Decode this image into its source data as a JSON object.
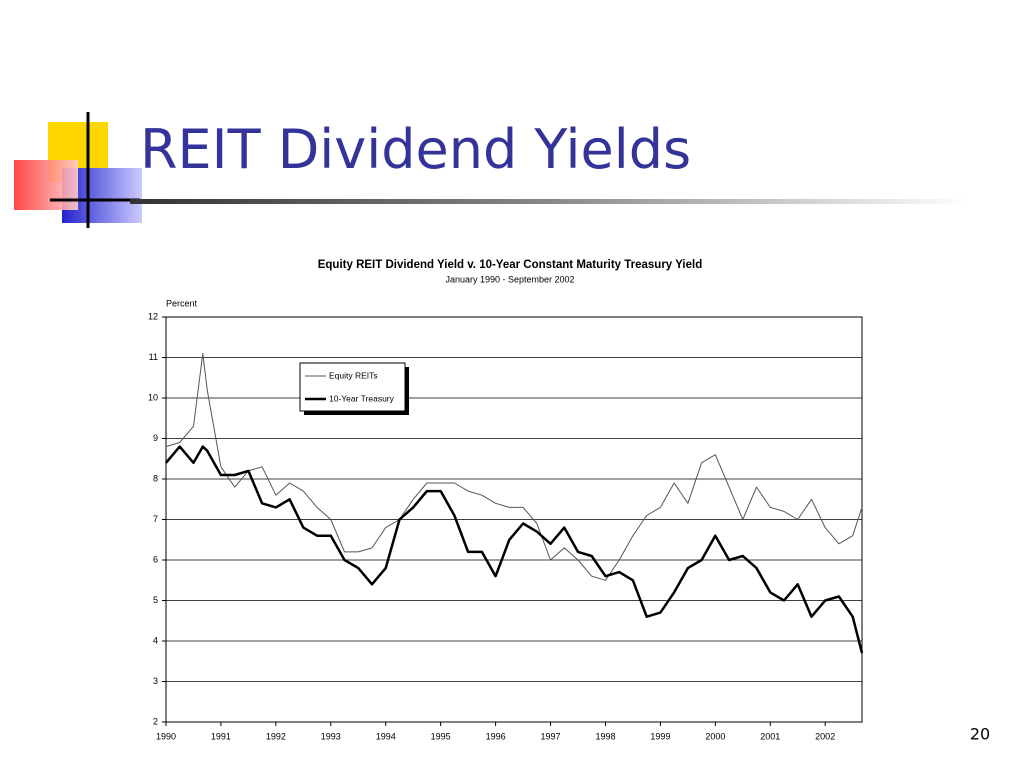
{
  "slide": {
    "title": "REIT Dividend Yields",
    "page_number": "20"
  },
  "chart_data": {
    "type": "line",
    "title": "Equity REIT Dividend Yield v. 10-Year Constant Maturity Treasury Yield",
    "subtitle": "January 1990 - September 2002",
    "y_label": "Percent",
    "x": [
      1990,
      1990.25,
      1990.5,
      1990.67,
      1990.75,
      1991,
      1991.25,
      1991.5,
      1991.75,
      1992,
      1992.25,
      1992.5,
      1992.75,
      1993,
      1993.25,
      1993.5,
      1993.75,
      1994,
      1994.25,
      1994.5,
      1994.75,
      1995,
      1995.25,
      1995.5,
      1995.75,
      1996,
      1996.25,
      1996.5,
      1996.75,
      1997,
      1997.25,
      1997.5,
      1997.75,
      1998,
      1998.25,
      1998.5,
      1998.75,
      1999,
      1999.25,
      1999.5,
      1999.75,
      2000,
      2000.25,
      2000.5,
      2000.75,
      2001,
      2001.25,
      2001.5,
      2001.75,
      2002,
      2002.25,
      2002.5,
      2002.67
    ],
    "series": [
      {
        "name": "Equity REITs",
        "color": "#555555",
        "width": 1,
        "values": [
          8.8,
          8.9,
          9.3,
          11.1,
          10.2,
          8.3,
          7.8,
          8.2,
          8.3,
          7.6,
          7.9,
          7.7,
          7.3,
          7.0,
          6.2,
          6.2,
          6.3,
          6.8,
          7.0,
          7.5,
          7.9,
          7.9,
          7.9,
          7.7,
          7.6,
          7.4,
          7.3,
          7.3,
          6.9,
          6.0,
          6.3,
          6.0,
          5.6,
          5.5,
          6.0,
          6.6,
          7.1,
          7.3,
          7.9,
          7.4,
          8.4,
          8.6,
          7.8,
          7.0,
          7.8,
          7.3,
          7.2,
          7.0,
          7.5,
          6.8,
          6.4,
          6.6,
          7.3
        ]
      },
      {
        "name": "10-Year Treasury",
        "color": "#000000",
        "width": 2.5,
        "values": [
          8.4,
          8.8,
          8.4,
          8.8,
          8.7,
          8.1,
          8.1,
          8.2,
          7.4,
          7.3,
          7.5,
          6.8,
          6.6,
          6.6,
          6.0,
          5.8,
          5.4,
          5.8,
          7.0,
          7.3,
          7.7,
          7.7,
          7.1,
          6.2,
          6.2,
          5.6,
          6.5,
          6.9,
          6.7,
          6.4,
          6.8,
          6.2,
          6.1,
          5.6,
          5.7,
          5.5,
          4.6,
          4.7,
          5.2,
          5.8,
          6.0,
          6.6,
          6.0,
          6.1,
          5.8,
          5.2,
          5.0,
          5.4,
          4.6,
          5.0,
          5.1,
          4.6,
          3.7
        ]
      }
    ],
    "xlim": [
      1990,
      2002.67
    ],
    "xticks": [
      1990,
      1991,
      1992,
      1993,
      1994,
      1995,
      1996,
      1997,
      1998,
      1999,
      2000,
      2001,
      2002
    ],
    "ylim": [
      2,
      12
    ],
    "yticks": [
      2,
      3,
      4,
      5,
      6,
      7,
      8,
      9,
      10,
      11,
      12
    ],
    "grid": true,
    "legend": "upper-left"
  }
}
